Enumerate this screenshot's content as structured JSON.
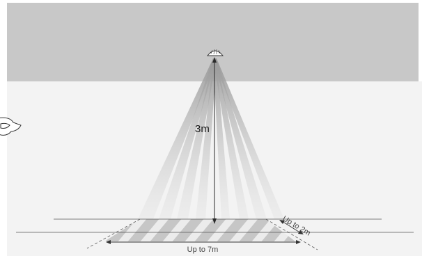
{
  "diagram": {
    "height_label": "3m",
    "width_label": "Up to 7m",
    "depth_label": "Up to 2m"
  },
  "colors": {
    "page_background": "#ffffff",
    "ceiling": "#c8c8c8",
    "wall": "#f3f3f3",
    "beam": "#a5a5a5",
    "line": "#555555",
    "floor_stripe": "#c6c6c6"
  },
  "icons": {
    "sensor": "ceiling-sensor-icon",
    "side_device": "side-device-icon"
  }
}
